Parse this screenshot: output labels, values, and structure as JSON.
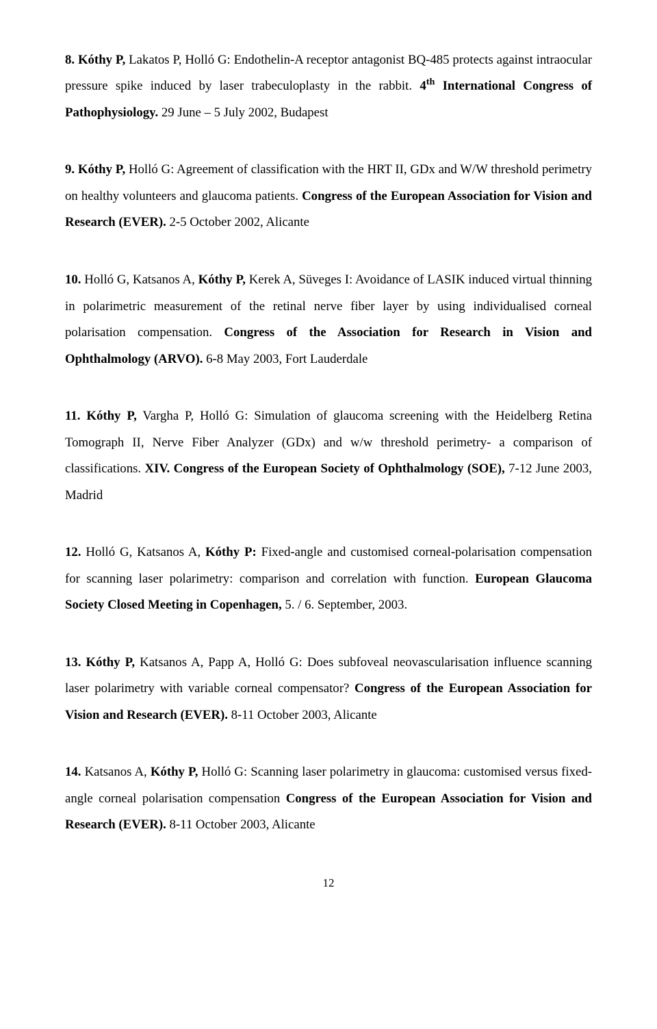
{
  "entries": [
    {
      "num": "8.",
      "lead_bold": "Kóthy P,",
      "authors_rest": " Lakatos P, Holló G: Endothelin-A receptor antagonist BQ-485 protects against intraocular pressure spike induced by laser trabeculoplasty in the rabbit. ",
      "venue_prefix": "4",
      "venue_sup": "th",
      "venue_bold": " International Congress of Pathophysiology.",
      "venue_tail": " 29 June – 5 July 2002, Budapest"
    },
    {
      "num": "9.",
      "lead_bold": "Kóthy P,",
      "authors_rest": " Holló G: Agreement of classification with the HRT II, GDx and W/W threshold perimetry on healthy volunteers and glaucoma patients. ",
      "venue_bold": "Congress of the European Association for Vision and Research (EVER).",
      "venue_tail": " 2-5 October 2002, Alicante"
    },
    {
      "num": "10.",
      "authors_plain_before": " Holló G, Katsanos A, ",
      "lead_bold": "Kóthy P,",
      "authors_rest": " Kerek A, Süveges I: Avoidance of LASIK induced virtual thinning in polarimetric measurement of the retinal nerve fiber layer by using individualised corneal polarisation compensation. ",
      "venue_bold": "Congress of the Association for Research in Vision and Ophthalmology (ARVO).",
      "venue_tail": " 6-8 May 2003, Fort Lauderdale"
    },
    {
      "num": "11.",
      "lead_bold": "Kóthy P,",
      "authors_rest": " Vargha P, Holló G: Simulation of glaucoma screening with the Heidelberg Retina Tomograph II, Nerve Fiber Analyzer (GDx) and w/w threshold perimetry- a comparison of classifications. ",
      "venue_bold": "XIV. Congress of the European Society of Ophthalmology (SOE),",
      "venue_tail": " 7-12 June 2003, Madrid"
    },
    {
      "num": "12.",
      "authors_plain_before": " Holló G, Katsanos A, ",
      "lead_bold": "Kóthy P:",
      "authors_rest": " Fixed-angle and customised corneal-polarisation compensation for scanning laser polarimetry: comparison and correlation with function. ",
      "venue_bold": "European Glaucoma Society Closed Meeting in Copenhagen,",
      "venue_tail": " 5. / 6. September, 2003."
    },
    {
      "num": "13.",
      "lead_bold": "Kóthy P,",
      "authors_rest": " Katsanos A, Papp A, Holló G: Does subfoveal neovascularisation influence scanning laser polarimetry with variable corneal compensator? ",
      "venue_bold": "Congress of the European Association for Vision and Research (EVER).",
      "venue_tail": " 8-11 October 2003, Alicante"
    },
    {
      "num": "14.",
      "authors_plain_before": " Katsanos A, ",
      "lead_bold": "Kóthy P,",
      "authors_rest": " Holló G: Scanning laser polarimetry in glaucoma: customised versus fixed-angle corneal polarisation compensation ",
      "venue_bold": "Congress of the European Association for Vision and Research (EVER).",
      "venue_tail": " 8-11 October 2003, Alicante"
    }
  ],
  "page_number": "12"
}
